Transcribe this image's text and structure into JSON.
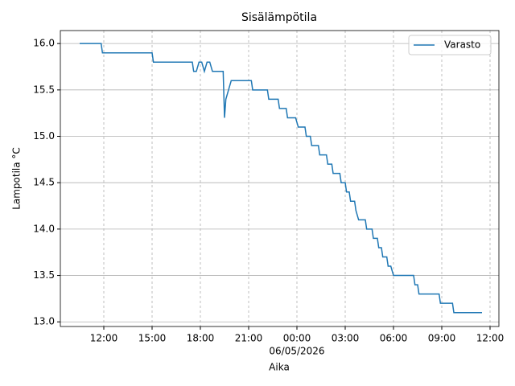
{
  "chart_data": {
    "type": "line",
    "title": "Sisälämpötila",
    "xlabel": "Aika",
    "ylabel": "Lampotila °C",
    "x_offset_label": "06/05/2026",
    "legend": "upper right",
    "grid": true,
    "series": [
      {
        "name": "Varasto",
        "color": "#1f77b4",
        "x": [
          "2026-05-05 10:30",
          "2026-05-05 11:50",
          "2026-05-05 11:55",
          "2026-05-05 15:00",
          "2026-05-05 15:05",
          "2026-05-05 17:30",
          "2026-05-05 17:35",
          "2026-05-05 17:45",
          "2026-05-05 17:55",
          "2026-05-05 18:05",
          "2026-05-05 18:15",
          "2026-05-05 18:25",
          "2026-05-05 18:35",
          "2026-05-05 18:45",
          "2026-05-05 19:25",
          "2026-05-05 19:30",
          "2026-05-05 19:35",
          "2026-05-05 19:45",
          "2026-05-05 19:55",
          "2026-05-05 21:10",
          "2026-05-05 21:15",
          "2026-05-05 22:10",
          "2026-05-05 22:15",
          "2026-05-05 22:50",
          "2026-05-05 22:55",
          "2026-05-05 23:20",
          "2026-05-05 23:25",
          "2026-05-05 23:55",
          "2026-05-06 00:05",
          "2026-05-06 00:30",
          "2026-05-06 00:35",
          "2026-05-06 00:50",
          "2026-05-06 00:55",
          "2026-05-06 01:20",
          "2026-05-06 01:25",
          "2026-05-06 01:50",
          "2026-05-06 01:55",
          "2026-05-06 02:10",
          "2026-05-06 02:15",
          "2026-05-06 02:40",
          "2026-05-06 02:45",
          "2026-05-06 03:00",
          "2026-05-06 03:05",
          "2026-05-06 03:15",
          "2026-05-06 03:20",
          "2026-05-06 03:35",
          "2026-05-06 03:40",
          "2026-05-06 03:50",
          "2026-05-06 04:15",
          "2026-05-06 04:20",
          "2026-05-06 04:40",
          "2026-05-06 04:45",
          "2026-05-06 05:00",
          "2026-05-06 05:05",
          "2026-05-06 05:15",
          "2026-05-06 05:20",
          "2026-05-06 05:35",
          "2026-05-06 05:40",
          "2026-05-06 05:50",
          "2026-05-06 06:00",
          "2026-05-06 07:15",
          "2026-05-06 07:20",
          "2026-05-06 07:30",
          "2026-05-06 07:35",
          "2026-05-06 08:50",
          "2026-05-06 08:55",
          "2026-05-06 09:40",
          "2026-05-06 09:45",
          "2026-05-06 11:30"
        ],
        "values": [
          16.0,
          16.0,
          15.9,
          15.9,
          15.8,
          15.8,
          15.7,
          15.7,
          15.8,
          15.8,
          15.7,
          15.8,
          15.8,
          15.7,
          15.7,
          15.2,
          15.4,
          15.5,
          15.6,
          15.6,
          15.5,
          15.5,
          15.4,
          15.4,
          15.3,
          15.3,
          15.2,
          15.2,
          15.1,
          15.1,
          15.0,
          15.0,
          14.9,
          14.9,
          14.8,
          14.8,
          14.7,
          14.7,
          14.6,
          14.6,
          14.5,
          14.5,
          14.4,
          14.4,
          14.3,
          14.3,
          14.2,
          14.1,
          14.1,
          14.0,
          14.0,
          13.9,
          13.9,
          13.8,
          13.8,
          13.7,
          13.7,
          13.6,
          13.6,
          13.5,
          13.5,
          13.4,
          13.4,
          13.3,
          13.3,
          13.2,
          13.2,
          13.1,
          13.1
        ]
      }
    ],
    "xlim": [
      "2026-05-05 09:18",
      "2026-05-06 12:33"
    ],
    "xticks": [
      {
        "value": "2026-05-05 12:00",
        "label": "12:00"
      },
      {
        "value": "2026-05-05 15:00",
        "label": "15:00"
      },
      {
        "value": "2026-05-05 18:00",
        "label": "18:00"
      },
      {
        "value": "2026-05-05 21:00",
        "label": "21:00"
      },
      {
        "value": "2026-05-06 00:00",
        "label": "00:00"
      },
      {
        "value": "2026-05-06 03:00",
        "label": "03:00"
      },
      {
        "value": "2026-05-06 06:00",
        "label": "06:00"
      },
      {
        "value": "2026-05-06 09:00",
        "label": "09:00"
      },
      {
        "value": "2026-05-06 12:00",
        "label": "12:00"
      }
    ],
    "ylim": [
      12.95,
      16.14
    ],
    "yticks": [
      {
        "value": 13,
        "label": "13.0"
      },
      {
        "value": 13.5,
        "label": "13.5"
      },
      {
        "value": 14,
        "label": "14.0"
      },
      {
        "value": 14.5,
        "label": "14.5"
      },
      {
        "value": 15,
        "label": "15.0"
      },
      {
        "value": 15.5,
        "label": "15.5"
      },
      {
        "value": 16,
        "label": "16.0"
      }
    ]
  }
}
